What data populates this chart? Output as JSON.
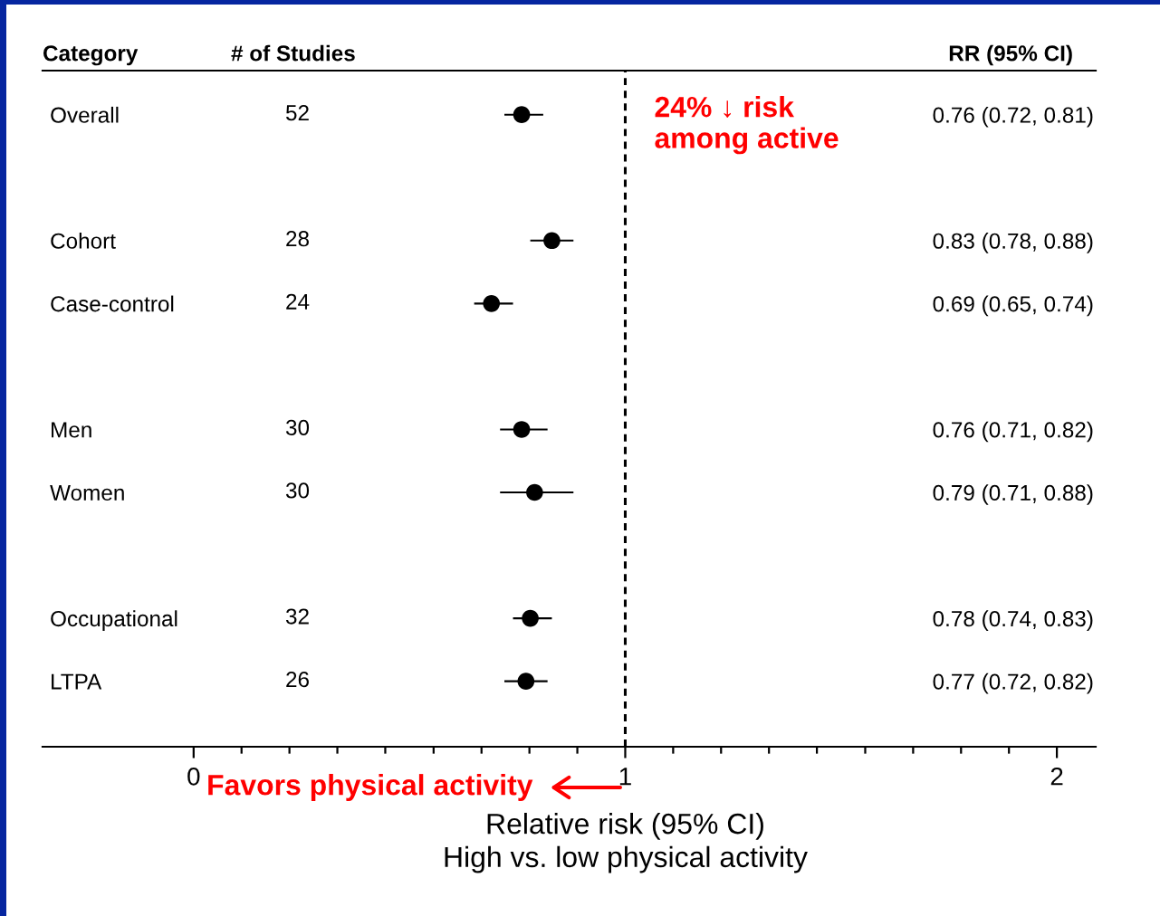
{
  "chart_data": {
    "type": "scatter",
    "orientation": "horizontal",
    "ylabel": "Category",
    "y2label": "RR (95% CI)",
    "xlabel": "Relative risk (95% CI)\nHigh vs. low physical activity",
    "categories": [
      "Overall",
      null,
      "Cohort",
      "Case-control",
      null,
      "Men",
      "Women",
      null,
      "Occupational",
      "LTPA"
    ],
    "y2_categories": [
      "0.76 (0.72, 0.81)",
      null,
      "0.83 (0.78, 0.88)",
      "0.69 (0.65, 0.74)",
      null,
      "0.76 (0.71, 0.82)",
      "0.79 (0.71, 0.88)",
      null,
      "0.78 (0.74, 0.83)",
      "0.77 (0.72, 0.82)"
    ],
    "values": [
      0.76,
      null,
      0.83,
      0.69,
      null,
      0.76,
      0.79,
      null,
      0.78,
      0.77
    ],
    "errors": [
      [
        0.72,
        0.81
      ],
      null,
      [
        0.78,
        0.88
      ],
      [
        0.65,
        0.74
      ],
      null,
      [
        0.71,
        0.82
      ],
      [
        0.71,
        0.88
      ],
      null,
      [
        0.74,
        0.83
      ],
      [
        0.72,
        0.82
      ]
    ],
    "color": "#000000",
    "marker": "circle",
    "xlim": [
      -0.35,
      2.09
    ],
    "xticks": [
      0,
      {
        "value": 0.111,
        "label": null
      },
      {
        "value": 0.222,
        "label": null
      },
      {
        "value": 0.333,
        "label": null
      },
      {
        "value": 0.444,
        "label": null
      },
      {
        "value": 0.556,
        "label": null
      },
      {
        "value": 0.667,
        "label": null
      },
      {
        "value": 0.778,
        "label": null
      },
      {
        "value": 0.889,
        "label": null
      },
      1,
      {
        "value": 1.111,
        "label": null
      },
      {
        "value": 1.222,
        "label": null
      },
      {
        "value": 1.333,
        "label": null
      },
      {
        "value": 1.444,
        "label": null
      },
      {
        "value": 1.556,
        "label": null
      },
      {
        "value": 1.667,
        "label": null
      },
      {
        "value": 1.778,
        "label": null
      },
      {
        "value": 1.889,
        "label": null
      },
      2
    ],
    "ref_lines": [
      {
        "axis": "x",
        "value": 1,
        "line_style": "dashed",
        "color": "#000000"
      }
    ],
    "annotations": [
      "# of Studies",
      "52",
      "28",
      "24",
      "30",
      "30",
      "32",
      "26",
      "24% ↓ risk\namong active",
      "Favors physical activity"
    ]
  }
}
